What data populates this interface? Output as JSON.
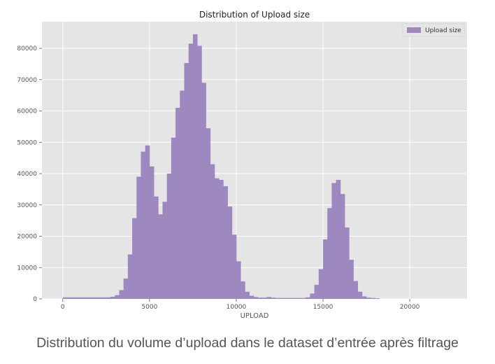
{
  "caption": "Distribution du volume d’upload dans le dataset d’entrée après filtrage",
  "chart_data": {
    "type": "bar",
    "title": "Distribution of Upload size",
    "xlabel": "UPLOAD",
    "ylabel": "",
    "xlim": [
      -1200,
      23300
    ],
    "ylim": [
      0,
      88500
    ],
    "xticks": [
      0,
      5000,
      10000,
      15000,
      20000
    ],
    "yticks": [
      0,
      10000,
      20000,
      30000,
      40000,
      50000,
      60000,
      70000,
      80000
    ],
    "grid": true,
    "legend_position": "top-right",
    "bin_width": 250,
    "series": [
      {
        "name": "Upload size",
        "color": "#9e88c0",
        "bins": [
          {
            "x0": 0,
            "y": 500
          },
          {
            "x0": 250,
            "y": 500
          },
          {
            "x0": 500,
            "y": 500
          },
          {
            "x0": 750,
            "y": 500
          },
          {
            "x0": 1000,
            "y": 500
          },
          {
            "x0": 1250,
            "y": 500
          },
          {
            "x0": 1500,
            "y": 500
          },
          {
            "x0": 1750,
            "y": 500
          },
          {
            "x0": 2000,
            "y": 500
          },
          {
            "x0": 2250,
            "y": 500
          },
          {
            "x0": 2500,
            "y": 500
          },
          {
            "x0": 2750,
            "y": 700
          },
          {
            "x0": 3000,
            "y": 1200
          },
          {
            "x0": 3250,
            "y": 2800
          },
          {
            "x0": 3500,
            "y": 6500
          },
          {
            "x0": 3750,
            "y": 14200
          },
          {
            "x0": 4000,
            "y": 25800
          },
          {
            "x0": 4250,
            "y": 39000
          },
          {
            "x0": 4500,
            "y": 47000
          },
          {
            "x0": 4750,
            "y": 49000
          },
          {
            "x0": 5000,
            "y": 42300
          },
          {
            "x0": 5250,
            "y": 32700
          },
          {
            "x0": 5500,
            "y": 27000
          },
          {
            "x0": 5750,
            "y": 31000
          },
          {
            "x0": 6000,
            "y": 40000
          },
          {
            "x0": 6250,
            "y": 51500
          },
          {
            "x0": 6500,
            "y": 61000
          },
          {
            "x0": 6750,
            "y": 66500
          },
          {
            "x0": 7000,
            "y": 75300
          },
          {
            "x0": 7250,
            "y": 81500
          },
          {
            "x0": 7500,
            "y": 84500
          },
          {
            "x0": 7750,
            "y": 80800
          },
          {
            "x0": 8000,
            "y": 69000
          },
          {
            "x0": 8250,
            "y": 54500
          },
          {
            "x0": 8500,
            "y": 43000
          },
          {
            "x0": 8750,
            "y": 38500
          },
          {
            "x0": 9000,
            "y": 38000
          },
          {
            "x0": 9250,
            "y": 36000
          },
          {
            "x0": 9500,
            "y": 29500
          },
          {
            "x0": 9750,
            "y": 20500
          },
          {
            "x0": 10000,
            "y": 12000
          },
          {
            "x0": 10250,
            "y": 5600
          },
          {
            "x0": 10500,
            "y": 2300
          },
          {
            "x0": 10750,
            "y": 1000
          },
          {
            "x0": 11000,
            "y": 600
          },
          {
            "x0": 11250,
            "y": 400
          },
          {
            "x0": 11500,
            "y": 400
          },
          {
            "x0": 11750,
            "y": 600
          },
          {
            "x0": 12000,
            "y": 400
          },
          {
            "x0": 12250,
            "y": 300
          },
          {
            "x0": 12500,
            "y": 300
          },
          {
            "x0": 12750,
            "y": 300
          },
          {
            "x0": 13000,
            "y": 300
          },
          {
            "x0": 13250,
            "y": 300
          },
          {
            "x0": 13500,
            "y": 300
          },
          {
            "x0": 13750,
            "y": 300
          },
          {
            "x0": 14000,
            "y": 500
          },
          {
            "x0": 14250,
            "y": 1700
          },
          {
            "x0": 14500,
            "y": 4500
          },
          {
            "x0": 14750,
            "y": 9500
          },
          {
            "x0": 15000,
            "y": 19000
          },
          {
            "x0": 15250,
            "y": 29000
          },
          {
            "x0": 15500,
            "y": 37000
          },
          {
            "x0": 15750,
            "y": 38000
          },
          {
            "x0": 16000,
            "y": 33500
          },
          {
            "x0": 16250,
            "y": 22800
          },
          {
            "x0": 16500,
            "y": 12500
          },
          {
            "x0": 16750,
            "y": 5700
          },
          {
            "x0": 17000,
            "y": 2300
          },
          {
            "x0": 17250,
            "y": 800
          },
          {
            "x0": 17500,
            "y": 400
          },
          {
            "x0": 17750,
            "y": 300
          },
          {
            "x0": 18000,
            "y": 200
          }
        ]
      }
    ]
  }
}
